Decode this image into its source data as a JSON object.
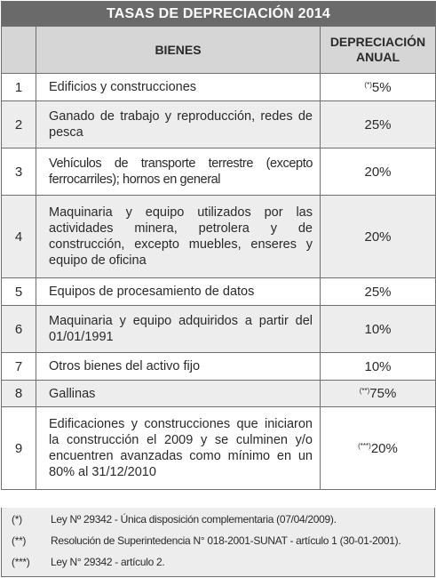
{
  "title": "TASAS DE DEPRECIACIÓN 2014",
  "headers": {
    "bienes": "BIENES",
    "depreciacion_line1": "DEPRECIACIÓN",
    "depreciacion_line2": "ANUAL"
  },
  "rows": [
    {
      "num": "1",
      "bien": "Edificios y construcciones",
      "mark": "(*)",
      "rate": "5%"
    },
    {
      "num": "2",
      "bien": "Ganado de trabajo y reproducción, redes de pesca",
      "mark": "",
      "rate": "25%"
    },
    {
      "num": "3",
      "bien": "Vehículos de transporte terrestre (excepto ferrocarriles); hornos en general",
      "mark": "",
      "rate": "20%"
    },
    {
      "num": "4",
      "bien": "Maquinaria y equipo utilizados por las actividades minera, petrolera y de construcción, excepto muebles, enseres y equipo de oficina",
      "mark": "",
      "rate": "20%"
    },
    {
      "num": "5",
      "bien": "Equipos de procesamiento de datos",
      "mark": "",
      "rate": "25%"
    },
    {
      "num": "6",
      "bien": "Maquinaria y equipo adquiridos a partir del 01/01/1991",
      "mark": "",
      "rate": "10%"
    },
    {
      "num": "7",
      "bien": "Otros bienes del activo fijo",
      "mark": "",
      "rate": "10%"
    },
    {
      "num": "8",
      "bien": "Gallinas",
      "mark": "(**)",
      "rate": "75%"
    },
    {
      "num": "9",
      "bien": "Edificaciones y construcciones que iniciaron la construcción el 2009 y se culminen y/o encuentren avanzadas como mínimo en un 80% al 31/12/2010",
      "mark": "(***)",
      "rate": "20%"
    }
  ],
  "notes": [
    {
      "mark": "(*)",
      "text": "Ley Nº 29342 - Única disposición complementaria (07/04/2009)."
    },
    {
      "mark": "(**)",
      "text": "Resolución de Superintedencia N° 018-2001-SUNAT - artículo 1 (30-01-2001)."
    },
    {
      "mark": "(***)",
      "text": "Ley N° 29342 - artículo 2."
    }
  ]
}
